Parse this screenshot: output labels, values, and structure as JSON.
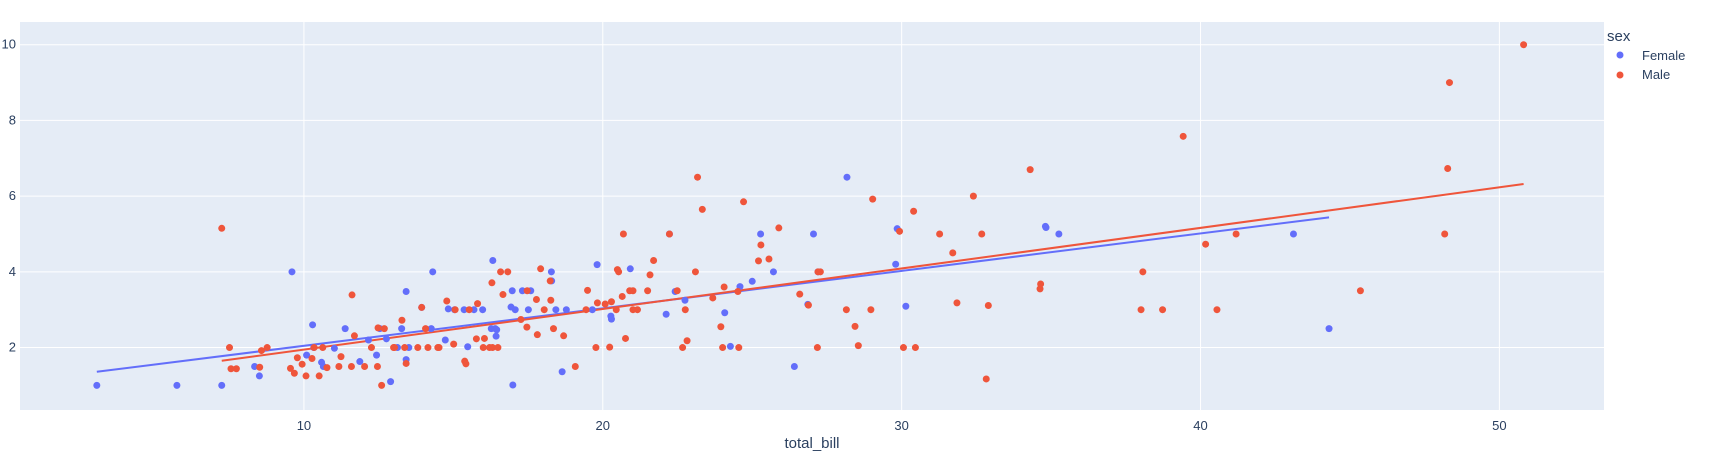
{
  "chart_data": {
    "type": "scatter",
    "xlabel": "total_bill",
    "ylabel": "",
    "xlim": [
      0.5,
      53.5
    ],
    "ylim": [
      0.35,
      10.6
    ],
    "x_ticks": [
      10,
      20,
      30,
      40,
      50
    ],
    "y_ticks": [
      2,
      4,
      6,
      8,
      10
    ],
    "grid": true,
    "legend": {
      "title": "sex",
      "position": "top-right"
    },
    "series": [
      {
        "name": "Female",
        "color": "#636efa",
        "trendline": {
          "x": [
            3.07,
            44.3
          ],
          "y": [
            1.36,
            5.44
          ]
        },
        "points": [
          [
            3.07,
            1.0
          ],
          [
            5.75,
            1.0
          ],
          [
            7.25,
            1.0
          ],
          [
            8.35,
            1.5
          ],
          [
            8.51,
            1.25
          ],
          [
            9.6,
            4.0
          ],
          [
            10.09,
            1.8
          ],
          [
            10.29,
            2.6
          ],
          [
            10.33,
            2.0
          ],
          [
            10.59,
            1.61
          ],
          [
            10.65,
            1.5
          ],
          [
            11.02,
            1.98
          ],
          [
            11.38,
            2.5
          ],
          [
            11.87,
            1.63
          ],
          [
            12.16,
            2.2
          ],
          [
            12.43,
            1.8
          ],
          [
            12.54,
            2.5
          ],
          [
            12.76,
            2.23
          ],
          [
            12.9,
            1.1
          ],
          [
            13.13,
            2.0
          ],
          [
            13.27,
            2.5
          ],
          [
            13.42,
            3.48
          ],
          [
            13.42,
            1.68
          ],
          [
            13.51,
            2.0
          ],
          [
            13.94,
            3.06
          ],
          [
            14.26,
            2.5
          ],
          [
            14.31,
            4.0
          ],
          [
            14.73,
            2.2
          ],
          [
            14.83,
            3.02
          ],
          [
            15.04,
            3.0
          ],
          [
            15.36,
            3.0
          ],
          [
            15.48,
            2.02
          ],
          [
            15.69,
            3.0
          ],
          [
            15.98,
            3.0
          ],
          [
            16.27,
            2.5
          ],
          [
            16.32,
            4.3
          ],
          [
            16.4,
            2.5
          ],
          [
            16.43,
            2.3
          ],
          [
            16.45,
            2.47
          ],
          [
            16.93,
            3.07
          ],
          [
            17.07,
            3.0
          ],
          [
            16.97,
            3.5
          ],
          [
            16.99,
            1.01
          ],
          [
            17.31,
            3.5
          ],
          [
            17.51,
            3.0
          ],
          [
            17.59,
            3.5
          ],
          [
            18.28,
            4.0
          ],
          [
            18.29,
            3.76
          ],
          [
            18.43,
            3.0
          ],
          [
            18.64,
            1.36
          ],
          [
            18.78,
            3.0
          ],
          [
            19.65,
            3.0
          ],
          [
            19.81,
            4.19
          ],
          [
            20.27,
            2.83
          ],
          [
            20.29,
            2.75
          ],
          [
            20.92,
            4.08
          ],
          [
            22.12,
            2.88
          ],
          [
            22.23,
            5.0
          ],
          [
            22.42,
            3.48
          ],
          [
            22.75,
            3.25
          ],
          [
            24.08,
            2.92
          ],
          [
            24.27,
            2.03
          ],
          [
            24.59,
            3.61
          ],
          [
            25.0,
            3.75
          ],
          [
            25.28,
            5.0
          ],
          [
            25.71,
            4.0
          ],
          [
            26.41,
            1.5
          ],
          [
            26.86,
            3.14
          ],
          [
            27.05,
            5.0
          ],
          [
            27.2,
            4.0
          ],
          [
            28.17,
            6.5
          ],
          [
            29.85,
            5.14
          ],
          [
            29.8,
            4.2
          ],
          [
            30.14,
            3.09
          ],
          [
            34.81,
            5.2
          ],
          [
            34.83,
            5.17
          ],
          [
            35.26,
            5.0
          ],
          [
            43.11,
            5.0
          ],
          [
            44.3,
            2.5
          ]
        ]
      },
      {
        "name": "Male",
        "color": "#ef553b",
        "trendline": {
          "x": [
            7.25,
            50.81
          ],
          "y": [
            1.65,
            6.32
          ]
        },
        "points": [
          [
            7.25,
            5.15
          ],
          [
            7.51,
            2.0
          ],
          [
            7.56,
            1.44
          ],
          [
            7.74,
            1.44
          ],
          [
            8.52,
            1.48
          ],
          [
            8.58,
            1.92
          ],
          [
            8.77,
            2.0
          ],
          [
            9.55,
            1.45
          ],
          [
            9.68,
            1.32
          ],
          [
            9.78,
            1.73
          ],
          [
            9.94,
            1.56
          ],
          [
            10.07,
            1.25
          ],
          [
            10.27,
            1.71
          ],
          [
            10.34,
            2.0
          ],
          [
            10.51,
            1.25
          ],
          [
            10.63,
            2.0
          ],
          [
            10.77,
            1.47
          ],
          [
            11.17,
            1.5
          ],
          [
            11.24,
            1.76
          ],
          [
            11.59,
            1.5
          ],
          [
            11.61,
            3.39
          ],
          [
            11.69,
            2.31
          ],
          [
            12.03,
            1.5
          ],
          [
            12.26,
            2.0
          ],
          [
            12.46,
            1.5
          ],
          [
            12.48,
            2.52
          ],
          [
            12.6,
            1.0
          ],
          [
            12.69,
            2.5
          ],
          [
            13.0,
            2.0
          ],
          [
            13.03,
            2.0
          ],
          [
            13.28,
            2.72
          ],
          [
            13.37,
            2.0
          ],
          [
            13.42,
            1.58
          ],
          [
            13.81,
            2.0
          ],
          [
            13.94,
            3.06
          ],
          [
            14.07,
            2.5
          ],
          [
            14.15,
            2.0
          ],
          [
            14.48,
            2.0
          ],
          [
            14.52,
            2.0
          ],
          [
            14.78,
            3.23
          ],
          [
            15.01,
            2.09
          ],
          [
            15.06,
            3.0
          ],
          [
            15.38,
            1.64
          ],
          [
            15.42,
            1.57
          ],
          [
            15.53,
            3.0
          ],
          [
            15.77,
            2.23
          ],
          [
            15.81,
            3.16
          ],
          [
            16.0,
            2.0
          ],
          [
            16.04,
            2.24
          ],
          [
            16.21,
            2.0
          ],
          [
            16.29,
            3.71
          ],
          [
            16.31,
            2.0
          ],
          [
            16.49,
            2.0
          ],
          [
            16.58,
            4.0
          ],
          [
            16.66,
            3.4
          ],
          [
            16.82,
            4.0
          ],
          [
            17.26,
            2.74
          ],
          [
            17.46,
            2.54
          ],
          [
            17.47,
            3.5
          ],
          [
            17.78,
            3.27
          ],
          [
            17.81,
            2.34
          ],
          [
            17.92,
            4.08
          ],
          [
            18.04,
            3.0
          ],
          [
            18.24,
            3.76
          ],
          [
            18.26,
            3.25
          ],
          [
            18.35,
            2.5
          ],
          [
            18.69,
            2.31
          ],
          [
            19.08,
            1.5
          ],
          [
            19.44,
            3.0
          ],
          [
            19.49,
            3.51
          ],
          [
            19.77,
            2.0
          ],
          [
            19.82,
            3.18
          ],
          [
            20.08,
            3.15
          ],
          [
            20.23,
            2.01
          ],
          [
            20.29,
            3.21
          ],
          [
            20.45,
            3.0
          ],
          [
            20.49,
            4.06
          ],
          [
            20.53,
            4.0
          ],
          [
            20.65,
            3.35
          ],
          [
            20.69,
            5.0
          ],
          [
            20.76,
            2.24
          ],
          [
            20.9,
            3.5
          ],
          [
            21.01,
            3.5
          ],
          [
            21.01,
            3.0
          ],
          [
            21.16,
            3.0
          ],
          [
            21.5,
            3.5
          ],
          [
            21.58,
            3.92
          ],
          [
            21.7,
            4.3
          ],
          [
            22.23,
            5.0
          ],
          [
            22.49,
            3.5
          ],
          [
            22.67,
            2.0
          ],
          [
            22.76,
            3.0
          ],
          [
            22.82,
            2.18
          ],
          [
            23.1,
            4.0
          ],
          [
            23.17,
            6.5
          ],
          [
            23.33,
            5.65
          ],
          [
            23.68,
            3.31
          ],
          [
            23.95,
            2.55
          ],
          [
            24.01,
            2.0
          ],
          [
            24.06,
            3.6
          ],
          [
            24.52,
            3.48
          ],
          [
            24.55,
            2.0
          ],
          [
            24.71,
            5.85
          ],
          [
            25.29,
            4.71
          ],
          [
            25.21,
            4.29
          ],
          [
            25.56,
            4.34
          ],
          [
            25.89,
            5.16
          ],
          [
            26.88,
            3.12
          ],
          [
            26.59,
            3.41
          ],
          [
            27.18,
            2.0
          ],
          [
            27.28,
            4.0
          ],
          [
            27.2,
            4.0
          ],
          [
            28.15,
            3.0
          ],
          [
            28.44,
            2.56
          ],
          [
            28.55,
            2.05
          ],
          [
            28.97,
            3.0
          ],
          [
            29.03,
            5.92
          ],
          [
            29.93,
            5.07
          ],
          [
            30.06,
            2.0
          ],
          [
            30.4,
            5.6
          ],
          [
            30.46,
            2.0
          ],
          [
            31.27,
            5.0
          ],
          [
            31.71,
            4.5
          ],
          [
            31.85,
            3.18
          ],
          [
            32.4,
            6.0
          ],
          [
            32.68,
            5.0
          ],
          [
            32.83,
            1.17
          ],
          [
            32.9,
            3.11
          ],
          [
            34.3,
            6.7
          ],
          [
            34.63,
            3.55
          ],
          [
            34.65,
            3.68
          ],
          [
            38.01,
            3.0
          ],
          [
            38.07,
            4.0
          ],
          [
            38.73,
            3.0
          ],
          [
            39.42,
            7.58
          ],
          [
            40.17,
            4.73
          ],
          [
            40.55,
            3.0
          ],
          [
            41.19,
            5.0
          ],
          [
            45.35,
            3.5
          ],
          [
            48.17,
            5.0
          ],
          [
            48.27,
            6.73
          ],
          [
            48.33,
            9.0
          ],
          [
            50.81,
            10.0
          ]
        ]
      }
    ]
  }
}
